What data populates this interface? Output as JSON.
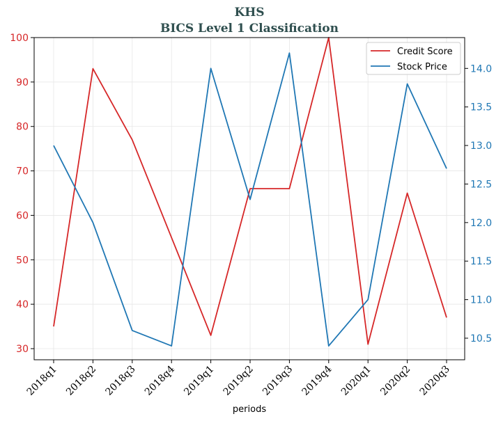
{
  "chart_data": {
    "type": "line",
    "title": "KHS",
    "subtitle": "BICS Level 1 Classification",
    "xlabel": "periods",
    "categories": [
      "2018q1",
      "2018q2",
      "2018q3",
      "2018q4",
      "2019q1",
      "2019q2",
      "2019q3",
      "2019q4",
      "2020q1",
      "2020q2",
      "2020q3"
    ],
    "series": [
      {
        "name": "Credit Score",
        "axis": "left",
        "color": "#d62728",
        "values": [
          35,
          93,
          77,
          55,
          33,
          66,
          66,
          100,
          31,
          65,
          37
        ]
      },
      {
        "name": "Stock Price",
        "axis": "right",
        "color": "#1f77b4",
        "values": [
          13.0,
          12.0,
          10.6,
          10.4,
          14.0,
          12.3,
          14.2,
          10.4,
          11.0,
          13.8,
          12.7
        ]
      }
    ],
    "left_axis": {
      "ylim": [
        27.5,
        100
      ],
      "ticks": [
        "30",
        "40",
        "50",
        "60",
        "70",
        "80",
        "90",
        "100"
      ],
      "color": "#d62728"
    },
    "right_axis": {
      "ylim": [
        10.22,
        14.4
      ],
      "ticks": [
        "10.5",
        "11.0",
        "11.5",
        "12.0",
        "12.5",
        "13.0",
        "13.5",
        "14.0"
      ],
      "color": "#1f77b4"
    },
    "grid": true,
    "legend_position": "top-right"
  }
}
